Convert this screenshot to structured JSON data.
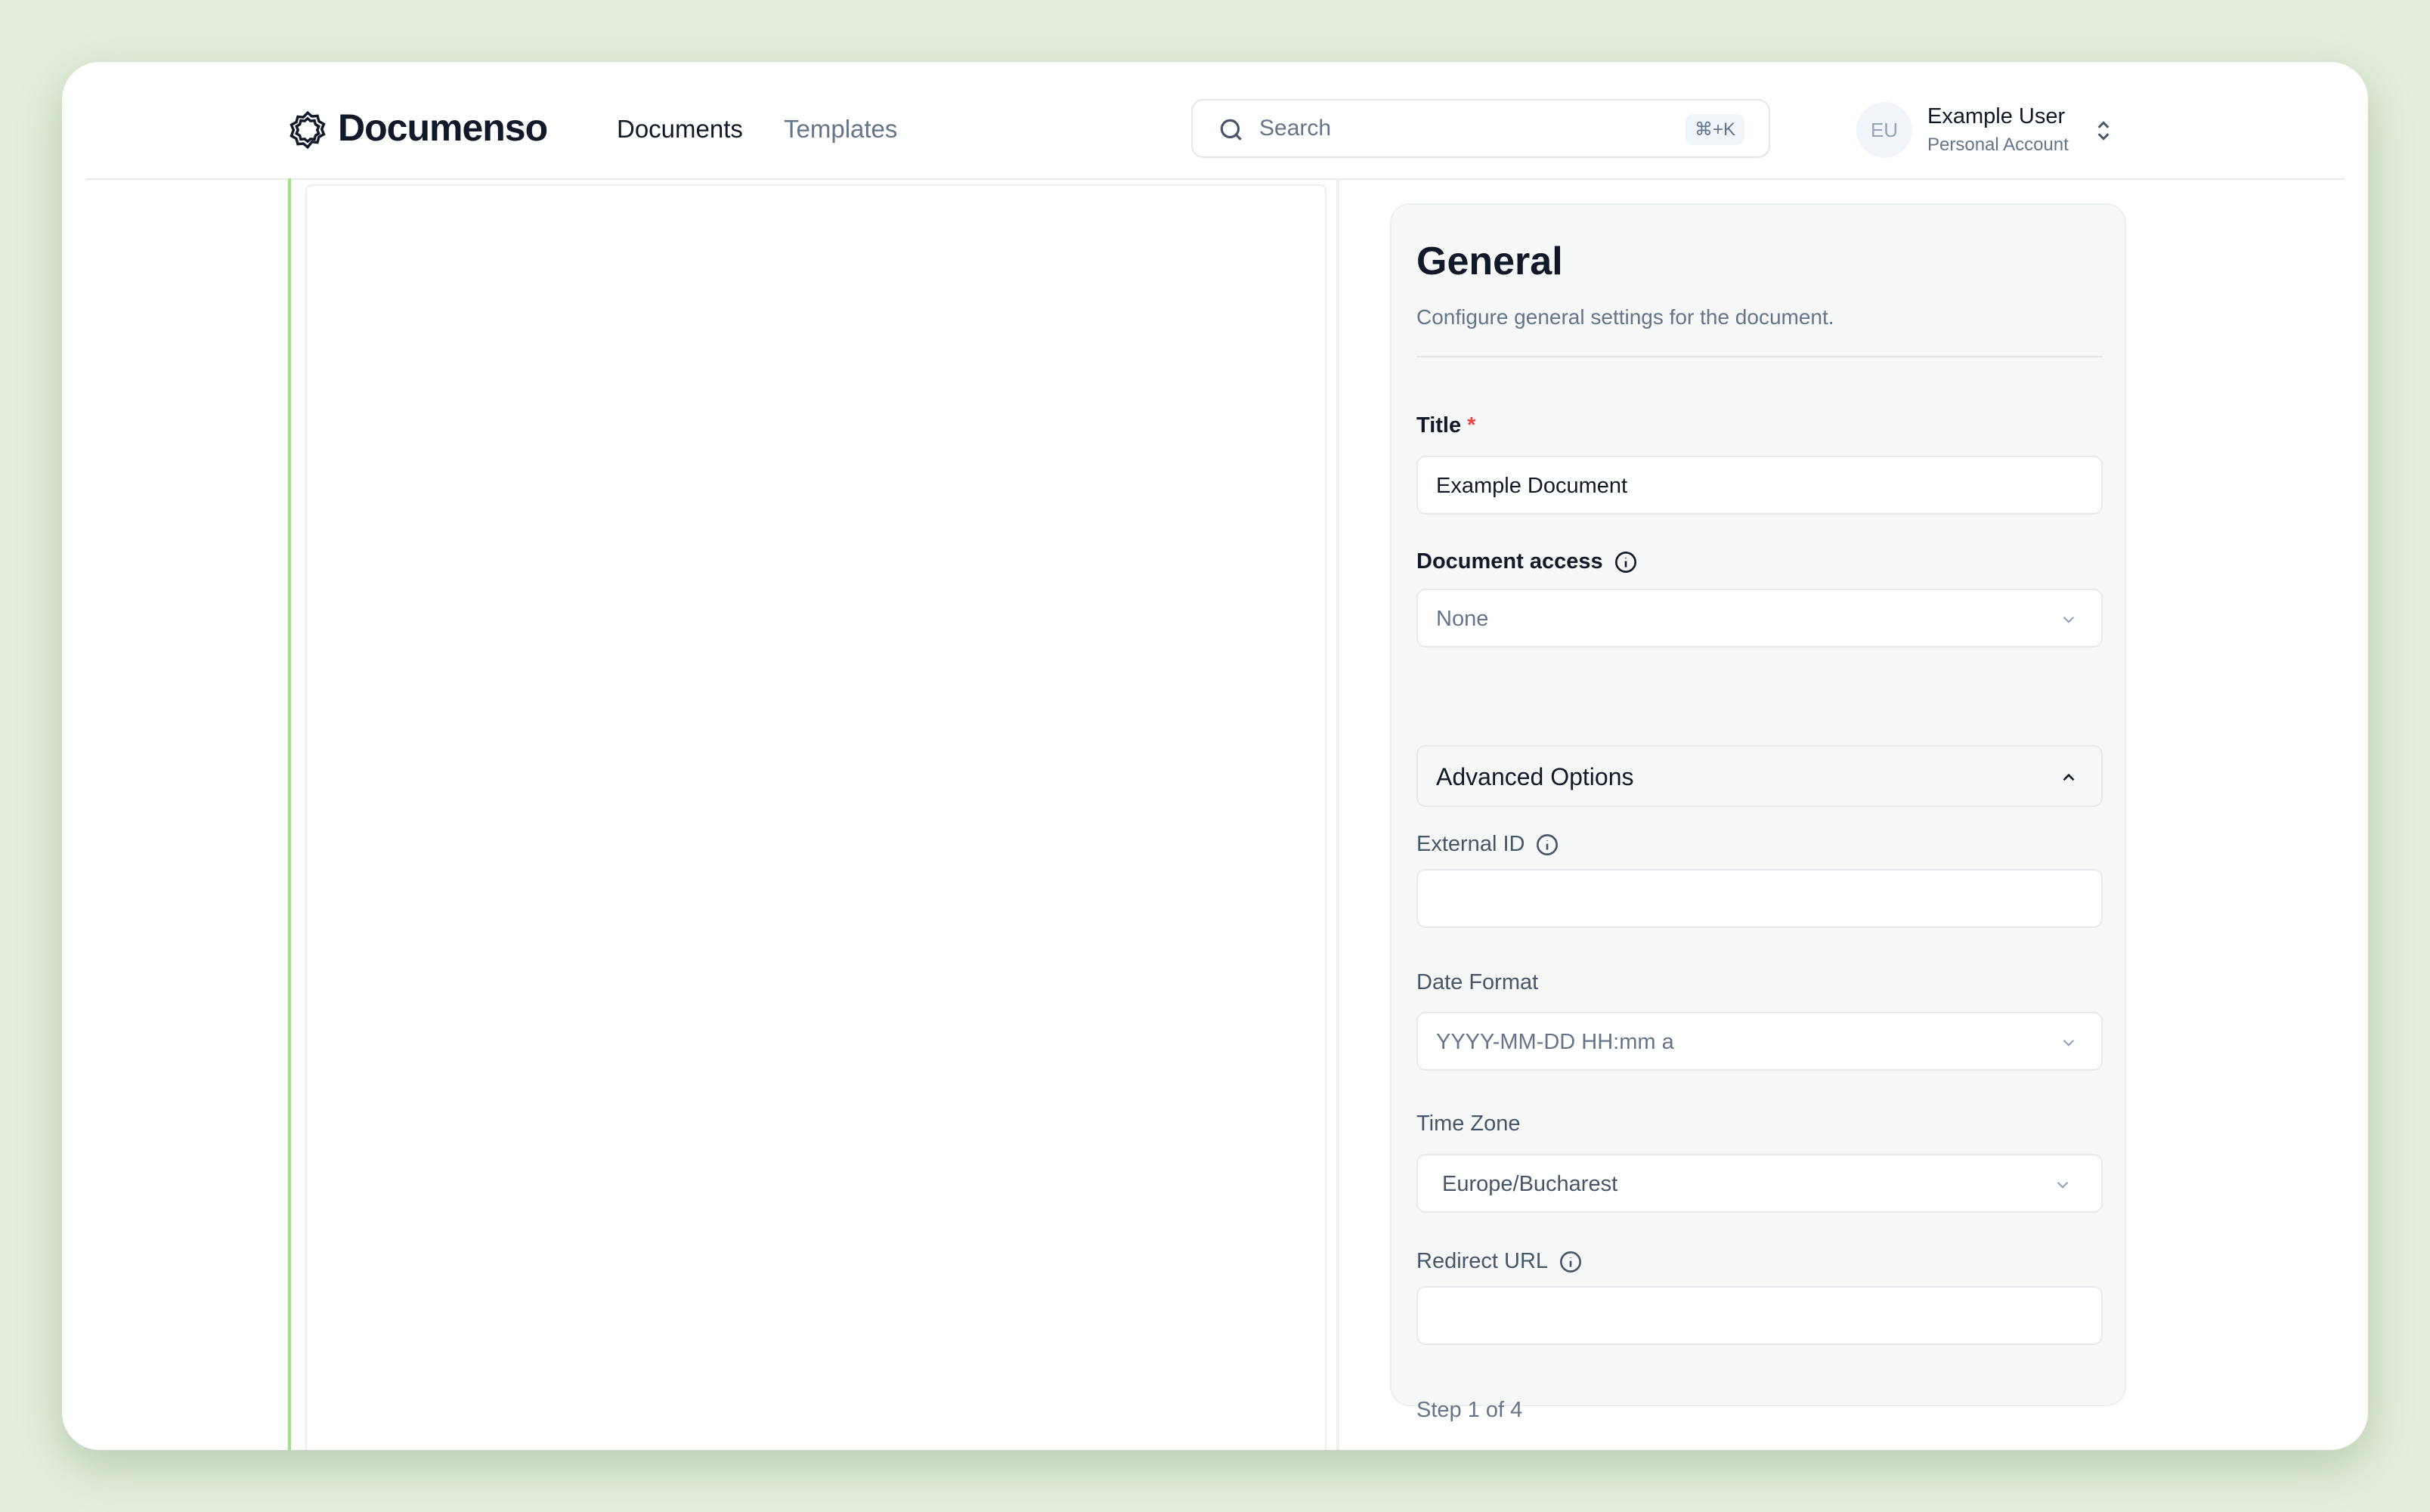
{
  "header": {
    "brand": "Documenso",
    "nav": [
      {
        "label": "Documents",
        "active": true
      },
      {
        "label": "Templates",
        "active": false
      }
    ],
    "search": {
      "placeholder": "Search",
      "shortcut": "⌘+K"
    },
    "user": {
      "initials": "EU",
      "name": "Example User",
      "account": "Personal Account"
    }
  },
  "panel": {
    "title": "General",
    "description": "Configure general settings for the document.",
    "title_field": {
      "label": "Title",
      "required": "*",
      "value": "Example Document"
    },
    "access": {
      "label": "Document access",
      "value": "None"
    },
    "advanced": {
      "label": "Advanced Options",
      "expanded": true
    },
    "external_id": {
      "label": "External ID",
      "value": ""
    },
    "date_format": {
      "label": "Date Format",
      "value": "YYYY-MM-DD HH:mm a"
    },
    "time_zone": {
      "label": "Time Zone",
      "value": "Europe/Bucharest"
    },
    "redirect_url": {
      "label": "Redirect URL",
      "value": ""
    },
    "step": {
      "text": "Step 1 of 4",
      "progress_percent": 25
    }
  },
  "colors": {
    "accent": "#a3e08a",
    "background": "#e2efdb",
    "required": "#ef4444"
  }
}
